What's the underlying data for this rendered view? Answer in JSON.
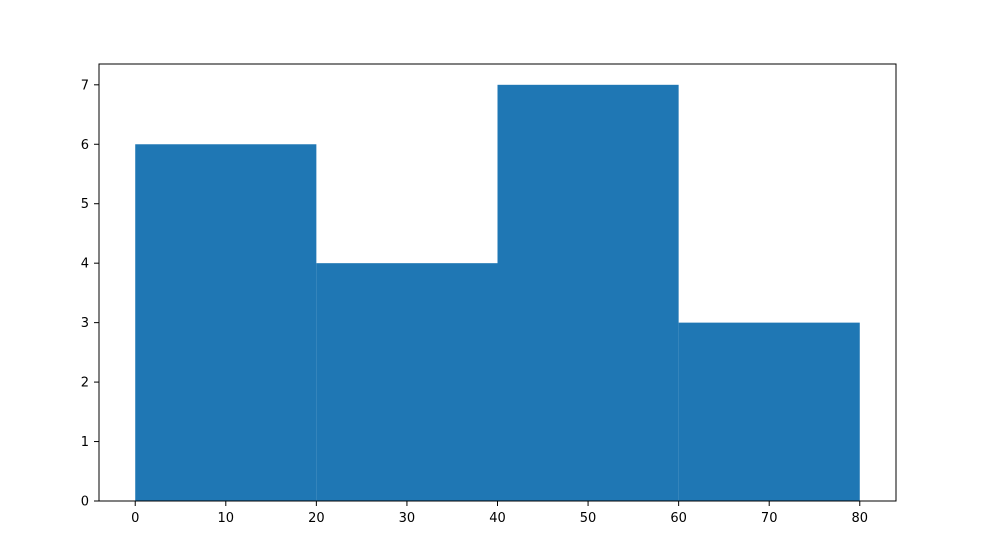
{
  "chart_data": {
    "type": "bar",
    "subtype": "histogram",
    "bins": [
      {
        "start": 0,
        "end": 20,
        "value": 6
      },
      {
        "start": 20,
        "end": 40,
        "value": 4
      },
      {
        "start": 40,
        "end": 60,
        "value": 7
      },
      {
        "start": 60,
        "end": 80,
        "value": 3
      }
    ],
    "x_ticks": [
      0,
      10,
      20,
      30,
      40,
      50,
      60,
      70,
      80
    ],
    "y_ticks": [
      0,
      1,
      2,
      3,
      4,
      5,
      6,
      7
    ],
    "xlim": [
      -4,
      84
    ],
    "ylim": [
      0,
      7.35
    ],
    "title": "",
    "xlabel": "",
    "ylabel": "",
    "grid": false,
    "bar_color": "#1f77b4"
  }
}
